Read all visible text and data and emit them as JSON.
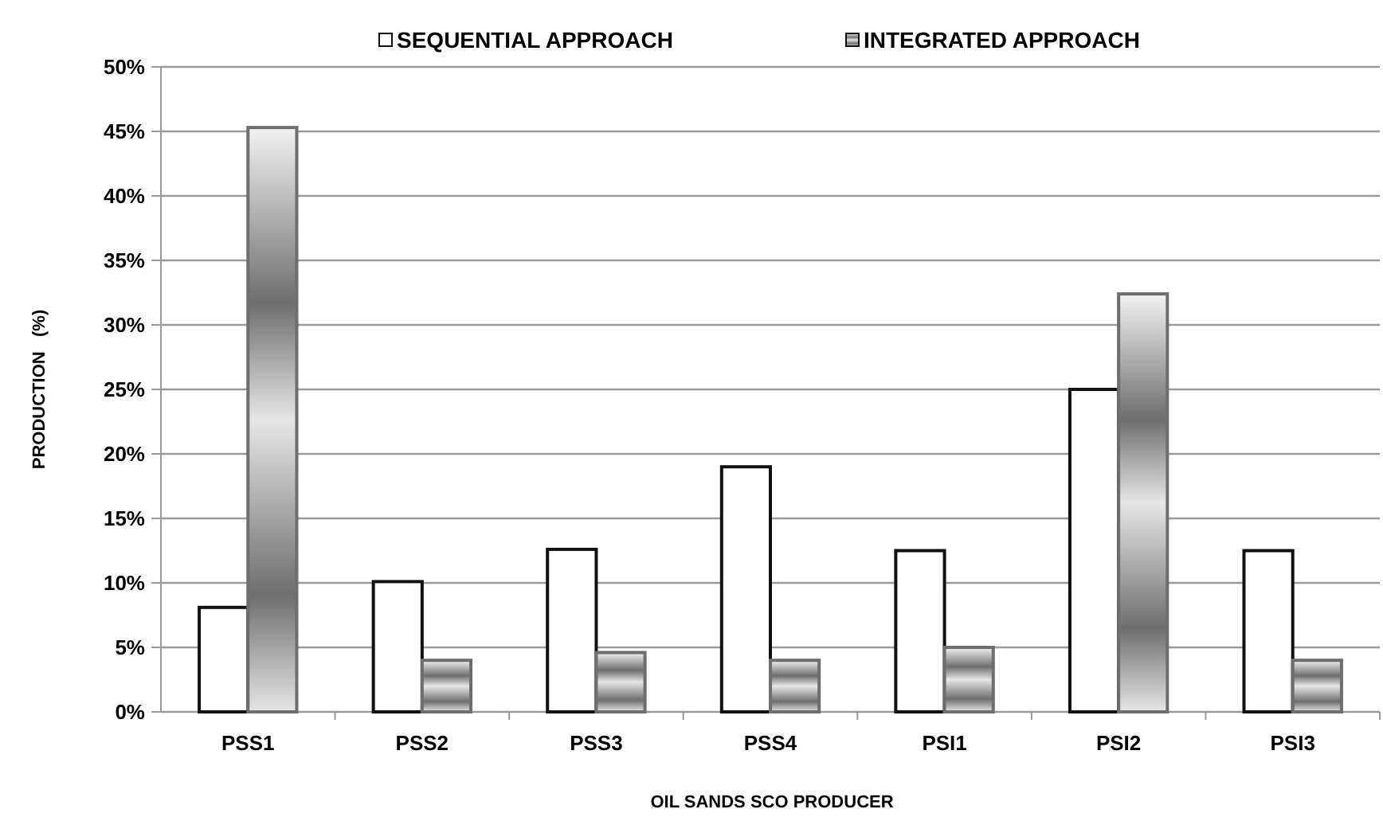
{
  "chart_data": {
    "type": "bar",
    "xlabel": "OIL SANDS SCO PRODUCER",
    "ylabel": "PRODUCTION   (%)",
    "categories": [
      "PSS1",
      "PSS2",
      "PSS3",
      "PSS4",
      "PSI1",
      "PSI2",
      "PSI3"
    ],
    "series": [
      {
        "name": "SEQUENTIAL APPROACH",
        "color": "#ffffff",
        "values": [
          8.1,
          10.1,
          12.6,
          19.0,
          12.5,
          25.0,
          12.5
        ]
      },
      {
        "name": "INTEGRATED APPROACH",
        "color": "#6e6e6e",
        "values": [
          45.3,
          4.0,
          4.6,
          4.0,
          5.0,
          32.4,
          4.0
        ]
      }
    ],
    "ylim": [
      0,
      50
    ],
    "yticks": [
      {
        "value": 0,
        "label": "0%"
      },
      {
        "value": 5,
        "label": "5%"
      },
      {
        "value": 10,
        "label": "10%"
      },
      {
        "value": 15,
        "label": "15%"
      },
      {
        "value": 20,
        "label": "20%"
      },
      {
        "value": 25,
        "label": "25%"
      },
      {
        "value": 30,
        "label": "30%"
      },
      {
        "value": 35,
        "label": "35%"
      },
      {
        "value": 40,
        "label": "40%"
      },
      {
        "value": 45,
        "label": "45%"
      },
      {
        "value": 50,
        "label": "50%"
      }
    ],
    "grid": "y",
    "legend": "top"
  }
}
